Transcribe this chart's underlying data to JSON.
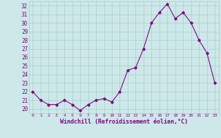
{
  "x": [
    0,
    1,
    2,
    3,
    4,
    5,
    6,
    7,
    8,
    9,
    10,
    11,
    12,
    13,
    14,
    15,
    16,
    17,
    18,
    19,
    20,
    21,
    22,
    23
  ],
  "y": [
    22.0,
    21.0,
    20.5,
    20.5,
    21.0,
    20.5,
    19.8,
    20.5,
    21.0,
    21.2,
    20.8,
    22.0,
    24.5,
    24.8,
    27.0,
    30.0,
    31.2,
    32.2,
    30.5,
    31.2,
    30.0,
    28.0,
    26.5,
    23.0
  ],
  "line_color": "#800080",
  "marker": "D",
  "marker_size": 1.8,
  "linewidth": 0.8,
  "bg_color": "#cce8e8",
  "grid_color": "#aacccc",
  "xlabel": "Windchill (Refroidissement éolien,°C)",
  "xlabel_color": "#800080",
  "xlabel_fontsize": 6.0,
  "tick_color": "#800080",
  "ylim": [
    19.5,
    32.5
  ],
  "xlim": [
    -0.5,
    23.5
  ],
  "yticks": [
    20,
    21,
    22,
    23,
    24,
    25,
    26,
    27,
    28,
    29,
    30,
    31,
    32
  ],
  "xticks": [
    0,
    1,
    2,
    3,
    4,
    5,
    6,
    7,
    8,
    9,
    10,
    11,
    12,
    13,
    14,
    15,
    16,
    17,
    18,
    19,
    20,
    21,
    22,
    23
  ],
  "ytick_fontsize": 5.5,
  "xtick_fontsize": 4.5
}
